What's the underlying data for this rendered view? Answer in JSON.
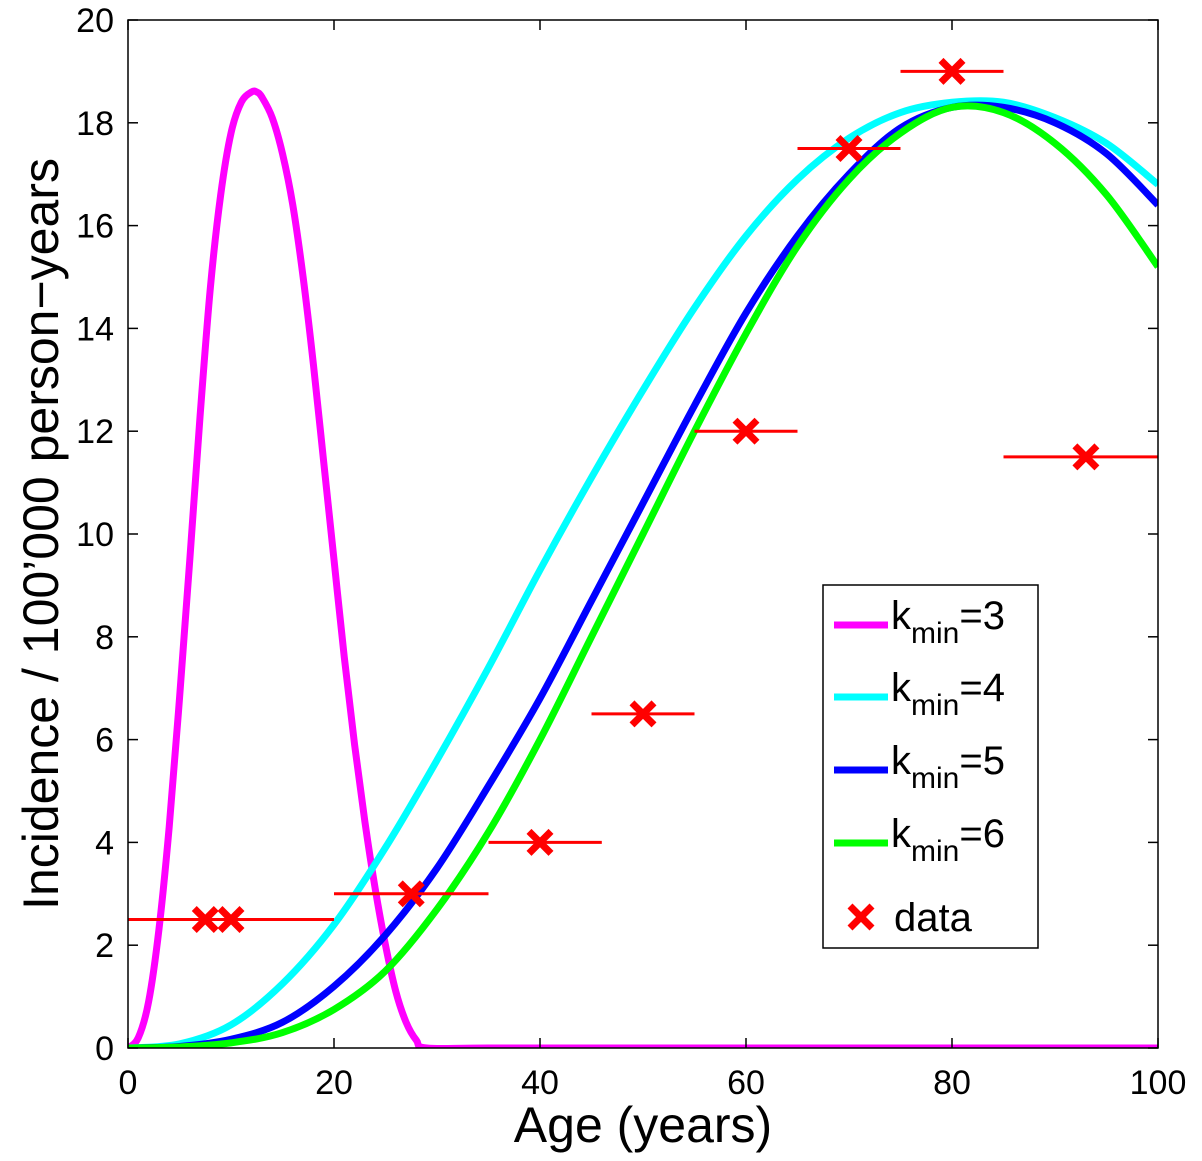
{
  "chart_data": {
    "type": "line",
    "xlabel": "Age (years)",
    "ylabel": "Incidence / 100’000 person−years",
    "xlim": [
      0,
      100
    ],
    "ylim": [
      0,
      20
    ],
    "xticks": [
      0,
      20,
      40,
      60,
      80,
      100
    ],
    "yticks": [
      0,
      2,
      4,
      6,
      8,
      10,
      12,
      14,
      16,
      18,
      20
    ],
    "grid": false,
    "legend_position": "lower-right",
    "series": [
      {
        "name": "k_min=3",
        "base": "k",
        "sub": "min",
        "suffix": "=3",
        "color": "#ff00ff",
        "x": [
          0,
          1,
          2,
          3,
          4,
          5,
          6,
          7,
          8,
          9,
          10,
          11,
          12,
          12.5,
          13,
          14,
          15,
          16,
          17,
          18,
          19,
          20,
          21,
          22,
          23,
          24,
          25,
          26,
          27,
          28,
          29,
          35,
          50,
          75,
          100
        ],
        "y": [
          0,
          0.2,
          0.9,
          2.3,
          4.3,
          6.8,
          9.5,
          12.3,
          14.8,
          16.6,
          17.8,
          18.4,
          18.6,
          18.6,
          18.5,
          18.1,
          17.4,
          16.4,
          15.0,
          13.3,
          11.4,
          9.5,
          7.6,
          5.9,
          4.4,
          3.1,
          2.0,
          1.1,
          0.5,
          0.15,
          0,
          0,
          0,
          0,
          0
        ]
      },
      {
        "name": "k_min=4",
        "base": "k",
        "sub": "min",
        "suffix": "=4",
        "color": "#00ffff",
        "x": [
          0,
          5,
          10,
          15,
          20,
          25,
          30,
          35,
          40,
          45,
          50,
          55,
          60,
          65,
          70,
          75,
          80,
          85,
          90,
          95,
          100
        ],
        "y": [
          0,
          0.08,
          0.45,
          1.25,
          2.4,
          3.9,
          5.6,
          7.4,
          9.3,
          11.1,
          12.8,
          14.4,
          15.8,
          16.9,
          17.7,
          18.2,
          18.4,
          18.4,
          18.1,
          17.6,
          16.8
        ]
      },
      {
        "name": "k_min=5",
        "base": "k",
        "sub": "min",
        "suffix": "=5",
        "color": "#0000ff",
        "x": [
          0,
          5,
          10,
          15,
          20,
          25,
          30,
          35,
          40,
          45,
          50,
          55,
          60,
          65,
          70,
          75,
          80,
          85,
          90,
          95,
          100
        ],
        "y": [
          0,
          0.03,
          0.17,
          0.5,
          1.2,
          2.2,
          3.5,
          5.1,
          6.8,
          8.7,
          10.6,
          12.5,
          14.3,
          15.8,
          17.0,
          17.9,
          18.3,
          18.3,
          18.0,
          17.4,
          16.4
        ]
      },
      {
        "name": "k_min=6",
        "base": "k",
        "sub": "min",
        "suffix": "=6",
        "color": "#00ff00",
        "x": [
          0,
          5,
          10,
          15,
          20,
          25,
          30,
          35,
          40,
          45,
          50,
          55,
          60,
          65,
          70,
          75,
          80,
          85,
          90,
          95,
          100
        ],
        "y": [
          0,
          0.02,
          0.1,
          0.3,
          0.75,
          1.5,
          2.7,
          4.2,
          6.0,
          8.0,
          10.0,
          12.0,
          13.9,
          15.6,
          16.9,
          17.8,
          18.3,
          18.2,
          17.6,
          16.6,
          15.2
        ]
      }
    ],
    "data": {
      "name": "data",
      "label": "data",
      "color": "#ff0000",
      "points": [
        {
          "x": 7.5,
          "y": 2.5,
          "xerr": [
            0,
            15
          ]
        },
        {
          "x": 10,
          "y": 2.5,
          "xerr": [
            0,
            20
          ]
        },
        {
          "x": 27.5,
          "y": 3.0,
          "xerr": [
            20,
            35
          ]
        },
        {
          "x": 40,
          "y": 4.0,
          "xerr": [
            35,
            46
          ]
        },
        {
          "x": 50,
          "y": 6.5,
          "xerr": [
            45,
            55
          ]
        },
        {
          "x": 60,
          "y": 12.0,
          "xerr": [
            55,
            65
          ]
        },
        {
          "x": 70,
          "y": 17.5,
          "xerr": [
            65,
            75
          ]
        },
        {
          "x": 80,
          "y": 19.0,
          "xerr": [
            75,
            85
          ]
        },
        {
          "x": 93,
          "y": 11.5,
          "xerr": [
            85,
            100
          ]
        }
      ]
    }
  }
}
